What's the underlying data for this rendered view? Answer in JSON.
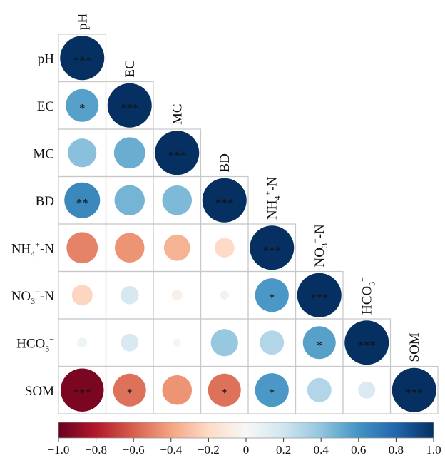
{
  "chart_data": {
    "type": "heatmap",
    "subtype": "correlation-matrix-lower-triangle",
    "variables": [
      {
        "id": "pH",
        "base": "pH",
        "sub": "",
        "sup": "",
        "tail": ""
      },
      {
        "id": "EC",
        "base": "EC",
        "sub": "",
        "sup": "",
        "tail": ""
      },
      {
        "id": "MC",
        "base": "MC",
        "sub": "",
        "sup": "",
        "tail": ""
      },
      {
        "id": "BD",
        "base": "BD",
        "sub": "",
        "sup": "",
        "tail": ""
      },
      {
        "id": "NH4+-N",
        "base": "NH",
        "sub": "4",
        "sup": "+",
        "tail": "-N"
      },
      {
        "id": "NO3--N",
        "base": "NO",
        "sub": "3",
        "sup": "−",
        "tail": "-N"
      },
      {
        "id": "HCO3-",
        "base": "HCO",
        "sub": "3",
        "sup": "−",
        "tail": ""
      },
      {
        "id": "SOM",
        "base": "SOM",
        "sub": "",
        "sup": "",
        "tail": ""
      }
    ],
    "cells": [
      {
        "row": 0,
        "col": 0,
        "r": 1.0,
        "sig": "***"
      },
      {
        "row": 1,
        "col": 0,
        "r": 0.55,
        "sig": "*"
      },
      {
        "row": 1,
        "col": 1,
        "r": 1.0,
        "sig": "***"
      },
      {
        "row": 2,
        "col": 0,
        "r": 0.42,
        "sig": ""
      },
      {
        "row": 2,
        "col": 1,
        "r": 0.5,
        "sig": ""
      },
      {
        "row": 2,
        "col": 2,
        "r": 1.0,
        "sig": "***"
      },
      {
        "row": 3,
        "col": 0,
        "r": 0.65,
        "sig": "**"
      },
      {
        "row": 3,
        "col": 1,
        "r": 0.47,
        "sig": ""
      },
      {
        "row": 3,
        "col": 2,
        "r": 0.45,
        "sig": ""
      },
      {
        "row": 3,
        "col": 3,
        "r": 1.0,
        "sig": "***"
      },
      {
        "row": 4,
        "col": 0,
        "r": -0.5,
        "sig": ""
      },
      {
        "row": 4,
        "col": 1,
        "r": -0.45,
        "sig": ""
      },
      {
        "row": 4,
        "col": 2,
        "r": -0.35,
        "sig": ""
      },
      {
        "row": 4,
        "col": 3,
        "r": -0.2,
        "sig": ""
      },
      {
        "row": 4,
        "col": 4,
        "r": 1.0,
        "sig": "***"
      },
      {
        "row": 5,
        "col": 0,
        "r": -0.22,
        "sig": ""
      },
      {
        "row": 5,
        "col": 1,
        "r": 0.17,
        "sig": ""
      },
      {
        "row": 5,
        "col": 2,
        "r": -0.06,
        "sig": ""
      },
      {
        "row": 5,
        "col": 3,
        "r": 0.04,
        "sig": ""
      },
      {
        "row": 5,
        "col": 4,
        "r": 0.58,
        "sig": "*"
      },
      {
        "row": 5,
        "col": 5,
        "r": 1.0,
        "sig": "***"
      },
      {
        "row": 6,
        "col": 0,
        "r": 0.05,
        "sig": ""
      },
      {
        "row": 6,
        "col": 1,
        "r": 0.16,
        "sig": ""
      },
      {
        "row": 6,
        "col": 2,
        "r": -0.03,
        "sig": ""
      },
      {
        "row": 6,
        "col": 3,
        "r": 0.38,
        "sig": ""
      },
      {
        "row": 6,
        "col": 4,
        "r": 0.3,
        "sig": ""
      },
      {
        "row": 6,
        "col": 5,
        "r": 0.55,
        "sig": "*"
      },
      {
        "row": 6,
        "col": 6,
        "r": 1.0,
        "sig": "***"
      },
      {
        "row": 7,
        "col": 0,
        "r": -0.95,
        "sig": "***"
      },
      {
        "row": 7,
        "col": 1,
        "r": -0.55,
        "sig": "*"
      },
      {
        "row": 7,
        "col": 2,
        "r": -0.45,
        "sig": ""
      },
      {
        "row": 7,
        "col": 3,
        "r": -0.55,
        "sig": "*"
      },
      {
        "row": 7,
        "col": 4,
        "r": 0.58,
        "sig": "*"
      },
      {
        "row": 7,
        "col": 5,
        "r": 0.3,
        "sig": ""
      },
      {
        "row": 7,
        "col": 6,
        "r": 0.15,
        "sig": ""
      },
      {
        "row": 7,
        "col": 7,
        "r": 1.0,
        "sig": "***"
      }
    ],
    "colorbar": {
      "range": [
        -1.0,
        1.0
      ],
      "ticks": [
        "−1.0",
        "−0.8",
        "−0.6",
        "−0.4",
        "−0.2",
        "0",
        "0.2",
        "0.4",
        "0.6",
        "0.8",
        "1.0"
      ],
      "tick_values": [
        -1.0,
        -0.8,
        -0.6,
        -0.4,
        -0.2,
        0,
        0.2,
        0.4,
        0.6,
        0.8,
        1.0
      ],
      "placement": "bottom"
    },
    "palette": [
      "#67001f",
      "#b2182b",
      "#d6604d",
      "#f4a582",
      "#fddbc7",
      "#f7f7f7",
      "#d1e5f0",
      "#92c5de",
      "#4393c3",
      "#2166ac",
      "#053061"
    ],
    "grid": true
  }
}
